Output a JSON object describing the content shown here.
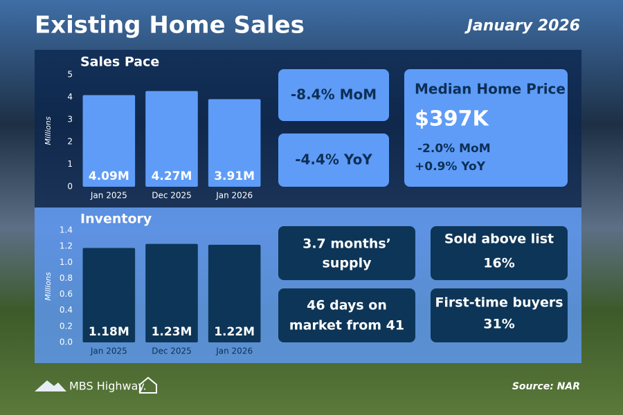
{
  "title": "Existing Home Sales",
  "date": "January 2026",
  "chart_data": [
    {
      "type": "bar",
      "title": "Sales Pace",
      "ylabel": "Millions",
      "categories": [
        "Jan 2025",
        "Dec 2025",
        "Jan 2026"
      ],
      "values": [
        4.09,
        4.27,
        3.91
      ],
      "value_labels": [
        "4.09M",
        "4.27M",
        "3.91M"
      ],
      "color": "#5e9cf8",
      "ylim": [
        0,
        5
      ],
      "yticks": [
        0,
        1,
        2,
        3,
        4,
        5
      ]
    },
    {
      "type": "bar",
      "title": "Inventory",
      "ylabel": "Millions",
      "categories": [
        "Jan 2025",
        "Dec 2025",
        "Jan 2026"
      ],
      "values": [
        1.18,
        1.23,
        1.22
      ],
      "value_labels": [
        "1.18M",
        "1.23M",
        "1.22M"
      ],
      "color": "#0d3557",
      "ylim": [
        0,
        1.4
      ],
      "yticks": [
        {
          "value": 0,
          "label": "0.0"
        },
        0.2,
        0.4,
        0.6,
        0.8,
        {
          "value": 1,
          "label": "1.0"
        },
        1.2,
        1.4
      ]
    }
  ],
  "cards": {
    "mom": "-8.4% MoM",
    "yoy": "-4.4% YoY",
    "median": {
      "title": "Median Home Price",
      "value": "$397K",
      "mom": "-2.0% MoM",
      "yoy": "+0.9% YoY"
    },
    "supply": [
      "3.7 months’",
      "supply"
    ],
    "above_list": [
      "Sold above list",
      "16%"
    ],
    "days": [
      "46 days on",
      "market from 41"
    ],
    "first_time": [
      "First-time buyers",
      "31%"
    ]
  },
  "footer": {
    "brand": "MBS Highway.",
    "source": "Source: NAR"
  }
}
